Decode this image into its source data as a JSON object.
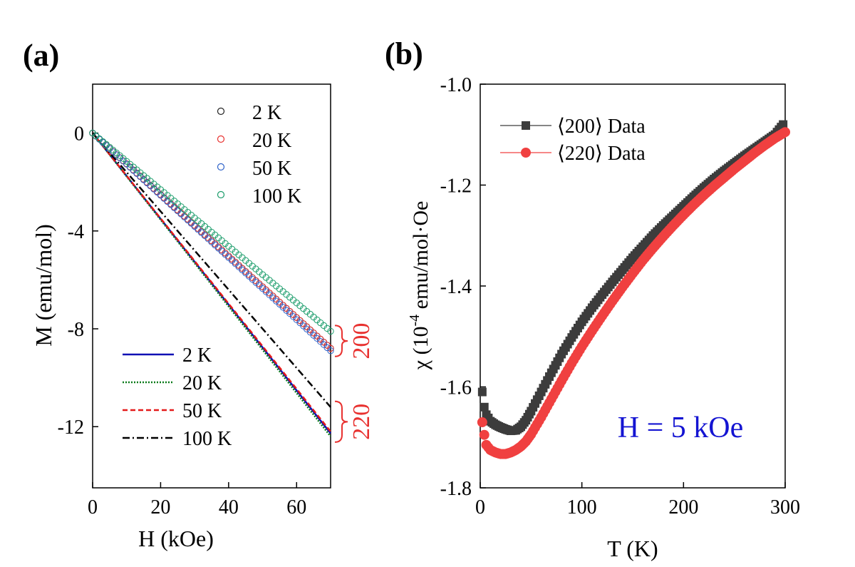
{
  "chart_data": [
    {
      "panel": "(a)",
      "type": "scatter",
      "xlabel": "H (kOe)",
      "ylabel": "M (emu/mol)",
      "xlim": [
        0,
        70
      ],
      "ylim": [
        -14.5,
        2
      ],
      "xticks": [
        0,
        20,
        40,
        60
      ],
      "yticks": [
        0,
        -4,
        -8,
        -12
      ],
      "grid": false,
      "series": [
        {
          "name": "2 K",
          "group": "200",
          "style": "open-circle",
          "color": "#222222",
          "slope": -0.1257
        },
        {
          "name": "20 K",
          "group": "200",
          "style": "open-circle",
          "color": "#e8312f",
          "slope": -0.1257
        },
        {
          "name": "50 K",
          "group": "200",
          "style": "open-circle",
          "color": "#2f63c9",
          "slope": -0.1271
        },
        {
          "name": "100 K",
          "group": "200",
          "style": "open-circle",
          "color": "#1a9c6a",
          "slope": -0.1157
        },
        {
          "name": "2 K",
          "group": "220",
          "style": "solid",
          "color": "#1010b4",
          "slope": -0.1753
        },
        {
          "name": "20 K",
          "group": "220",
          "style": "dotted",
          "color": "#0a7a1a",
          "slope": -0.1771
        },
        {
          "name": "50 K",
          "group": "220",
          "style": "dashed",
          "color": "#e41a1a",
          "slope": -0.1743
        },
        {
          "name": "100 K",
          "group": "220",
          "style": "dashdot",
          "color": "#000000",
          "slope": -0.16
        }
      ],
      "group_labels": [
        "200",
        "220"
      ],
      "legend_circles": [
        "2 K",
        "20 K",
        "50 K",
        "100 K"
      ],
      "legend_lines": [
        "2 K",
        "20 K",
        "50 K",
        "100 K"
      ]
    },
    {
      "panel": "(b)",
      "type": "scatter",
      "xlabel": "T (K)",
      "ylabel_prefix": "χ (10",
      "ylabel_sup": "-4",
      "ylabel_suffix": " emu/mol·Oe",
      "xlim": [
        0,
        300
      ],
      "ylim": [
        -1.8,
        -1.0
      ],
      "xticks": [
        0,
        100,
        200,
        300
      ],
      "yticks": [
        -1.0,
        -1.2,
        -1.4,
        -1.6,
        -1.8
      ],
      "grid": false,
      "annotation": "H = 5 kOe",
      "series": [
        {
          "name": "⟨200⟩ Data",
          "marker": "square",
          "color": "#3c3c3c",
          "points": [
            [
              2,
              -1.61
            ],
            [
              4,
              -1.64
            ],
            [
              6,
              -1.655
            ],
            [
              10,
              -1.668
            ],
            [
              15,
              -1.675
            ],
            [
              20,
              -1.68
            ],
            [
              25,
              -1.684
            ],
            [
              30,
              -1.687
            ],
            [
              35,
              -1.686
            ],
            [
              40,
              -1.679
            ],
            [
              45,
              -1.666
            ],
            [
              50,
              -1.648
            ],
            [
              60,
              -1.61
            ],
            [
              70,
              -1.572
            ],
            [
              80,
              -1.535
            ],
            [
              90,
              -1.502
            ],
            [
              100,
              -1.471
            ],
            [
              110,
              -1.443
            ],
            [
              120,
              -1.417
            ],
            [
              130,
              -1.392
            ],
            [
              140,
              -1.368
            ],
            [
              150,
              -1.344
            ],
            [
              160,
              -1.322
            ],
            [
              170,
              -1.3
            ],
            [
              180,
              -1.28
            ],
            [
              190,
              -1.261
            ],
            [
              200,
              -1.242
            ],
            [
              210,
              -1.223
            ],
            [
              220,
              -1.205
            ],
            [
              230,
              -1.188
            ],
            [
              240,
              -1.172
            ],
            [
              250,
              -1.157
            ],
            [
              260,
              -1.142
            ],
            [
              270,
              -1.128
            ],
            [
              280,
              -1.114
            ],
            [
              290,
              -1.1
            ],
            [
              298,
              -1.08
            ]
          ]
        },
        {
          "name": "⟨220⟩ Data",
          "marker": "circle",
          "color": "#f04040",
          "points": [
            [
              2,
              -1.67
            ],
            [
              4,
              -1.695
            ],
            [
              6,
              -1.715
            ],
            [
              10,
              -1.725
            ],
            [
              15,
              -1.73
            ],
            [
              20,
              -1.733
            ],
            [
              25,
              -1.733
            ],
            [
              30,
              -1.73
            ],
            [
              35,
              -1.725
            ],
            [
              40,
              -1.718
            ],
            [
              45,
              -1.708
            ],
            [
              50,
              -1.694
            ],
            [
              60,
              -1.66
            ],
            [
              70,
              -1.624
            ],
            [
              80,
              -1.588
            ],
            [
              90,
              -1.553
            ],
            [
              100,
              -1.52
            ],
            [
              110,
              -1.489
            ],
            [
              120,
              -1.459
            ],
            [
              130,
              -1.43
            ],
            [
              140,
              -1.402
            ],
            [
              150,
              -1.375
            ],
            [
              160,
              -1.349
            ],
            [
              170,
              -1.325
            ],
            [
              180,
              -1.302
            ],
            [
              190,
              -1.28
            ],
            [
              200,
              -1.259
            ],
            [
              210,
              -1.239
            ],
            [
              220,
              -1.22
            ],
            [
              230,
              -1.202
            ],
            [
              240,
              -1.185
            ],
            [
              250,
              -1.168
            ],
            [
              260,
              -1.152
            ],
            [
              270,
              -1.136
            ],
            [
              280,
              -1.121
            ],
            [
              290,
              -1.107
            ],
            [
              300,
              -1.095
            ]
          ]
        }
      ]
    }
  ]
}
